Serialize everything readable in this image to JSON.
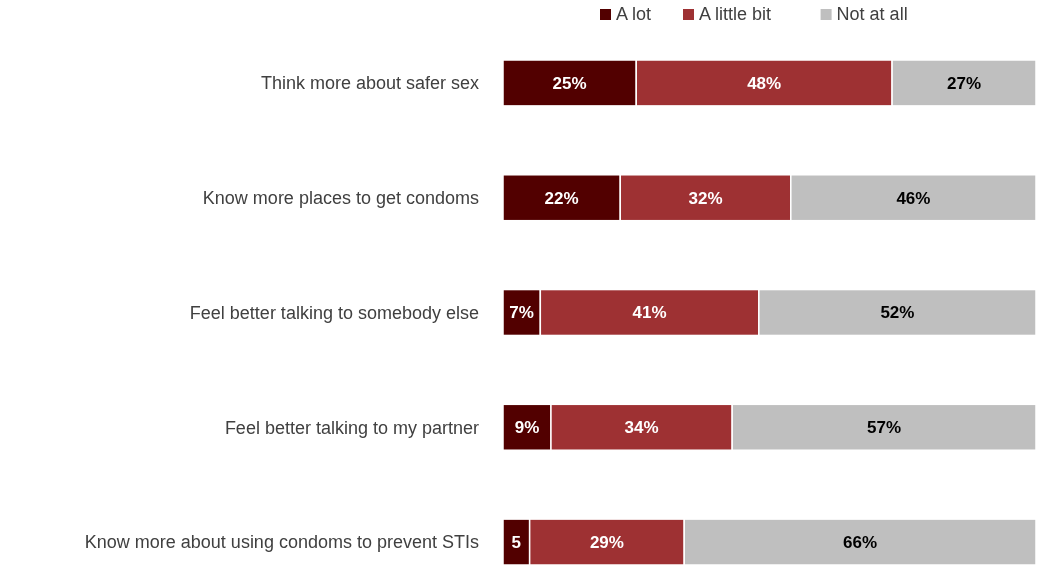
{
  "chart_data": {
    "type": "bar",
    "orientation": "horizontal",
    "stacked": true,
    "legend": "top right",
    "categories": [
      "Think more about safer sex",
      "Know more places to get condoms",
      "Feel better talking to somebody else",
      "Feel better talking to my partner",
      "Know more about using condoms to prevent STIs"
    ],
    "series": [
      {
        "name": "A lot",
        "color": "#520000",
        "values": [
          25,
          22,
          7,
          9,
          5
        ],
        "value_labels": [
          "25%",
          "22%",
          "7%",
          "9%",
          "5"
        ]
      },
      {
        "name": "A little bit",
        "color": "#9e3133",
        "values": [
          48,
          32,
          41,
          34,
          29
        ],
        "value_labels": [
          "48%",
          "32%",
          "41%",
          "34%",
          "29%"
        ]
      },
      {
        "name": "Not at all",
        "color": "#bfbfbf",
        "values": [
          27,
          46,
          52,
          57,
          66
        ],
        "value_labels": [
          "27%",
          "46%",
          "52%",
          "57%",
          "66%"
        ]
      }
    ]
  }
}
